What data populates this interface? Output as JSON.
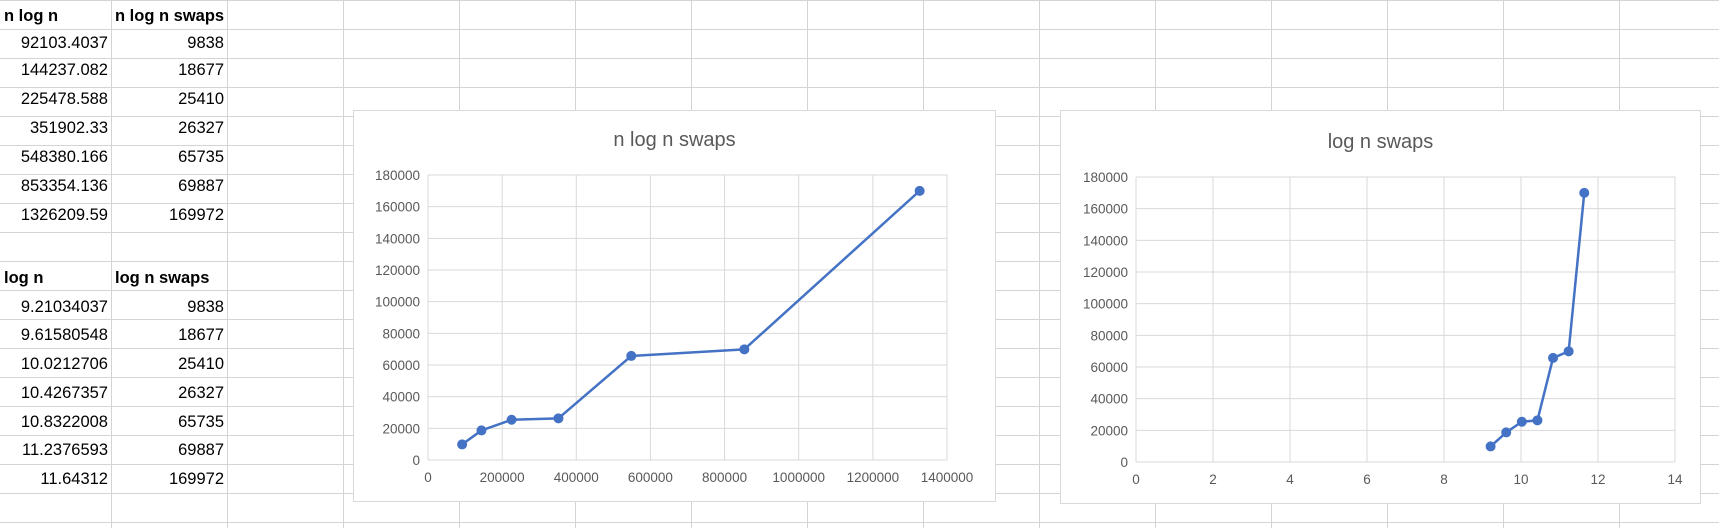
{
  "tables": [
    {
      "header": [
        "n log n",
        "n log n swaps"
      ],
      "rows": [
        [
          "92103.4037",
          "9838"
        ],
        [
          "144237.082",
          "18677"
        ],
        [
          "225478.588",
          "25410"
        ],
        [
          "351902.33",
          "26327"
        ],
        [
          "548380.166",
          "65735"
        ],
        [
          "853354.136",
          "69887"
        ],
        [
          "1326209.59",
          "169972"
        ]
      ]
    },
    {
      "header": [
        "log n",
        "log n swaps"
      ],
      "rows": [
        [
          "9.21034037",
          "9838"
        ],
        [
          "9.61580548",
          "18677"
        ],
        [
          "10.0212706",
          "25410"
        ],
        [
          "10.4267357",
          "26327"
        ],
        [
          "10.8322008",
          "65735"
        ],
        [
          "11.2376593",
          "69887"
        ],
        [
          "11.64312",
          "169972"
        ]
      ]
    }
  ],
  "chart_data": [
    {
      "type": "line",
      "title": "n log n swaps",
      "x": [
        92103.4037,
        144237.082,
        225478.588,
        351902.33,
        548380.166,
        853354.136,
        1326209.59
      ],
      "y": [
        9838,
        18677,
        25410,
        26327,
        65735,
        69887,
        169972
      ],
      "xlim": [
        0,
        1400000
      ],
      "ylim": [
        0,
        180000
      ],
      "xticks": [
        "0",
        "200000",
        "400000",
        "600000",
        "800000",
        "1000000",
        "1200000",
        "1400000"
      ],
      "yticks": [
        "0",
        "20000",
        "40000",
        "60000",
        "80000",
        "100000",
        "120000",
        "140000",
        "160000",
        "180000"
      ],
      "grid": true,
      "color": "#4472c4"
    },
    {
      "type": "line",
      "title": "log n swaps",
      "x": [
        9.21034037,
        9.61580548,
        10.0212706,
        10.4267357,
        10.8322008,
        11.2376593,
        11.64312
      ],
      "y": [
        9838,
        18677,
        25410,
        26327,
        65735,
        69887,
        169972
      ],
      "xlim": [
        0,
        14
      ],
      "ylim": [
        0,
        180000
      ],
      "xticks": [
        "0",
        "2",
        "4",
        "6",
        "8",
        "10",
        "12",
        "14"
      ],
      "yticks": [
        "0",
        "20000",
        "40000",
        "60000",
        "80000",
        "100000",
        "120000",
        "140000",
        "160000",
        "180000"
      ],
      "grid": true,
      "color": "#4472c4"
    }
  ]
}
